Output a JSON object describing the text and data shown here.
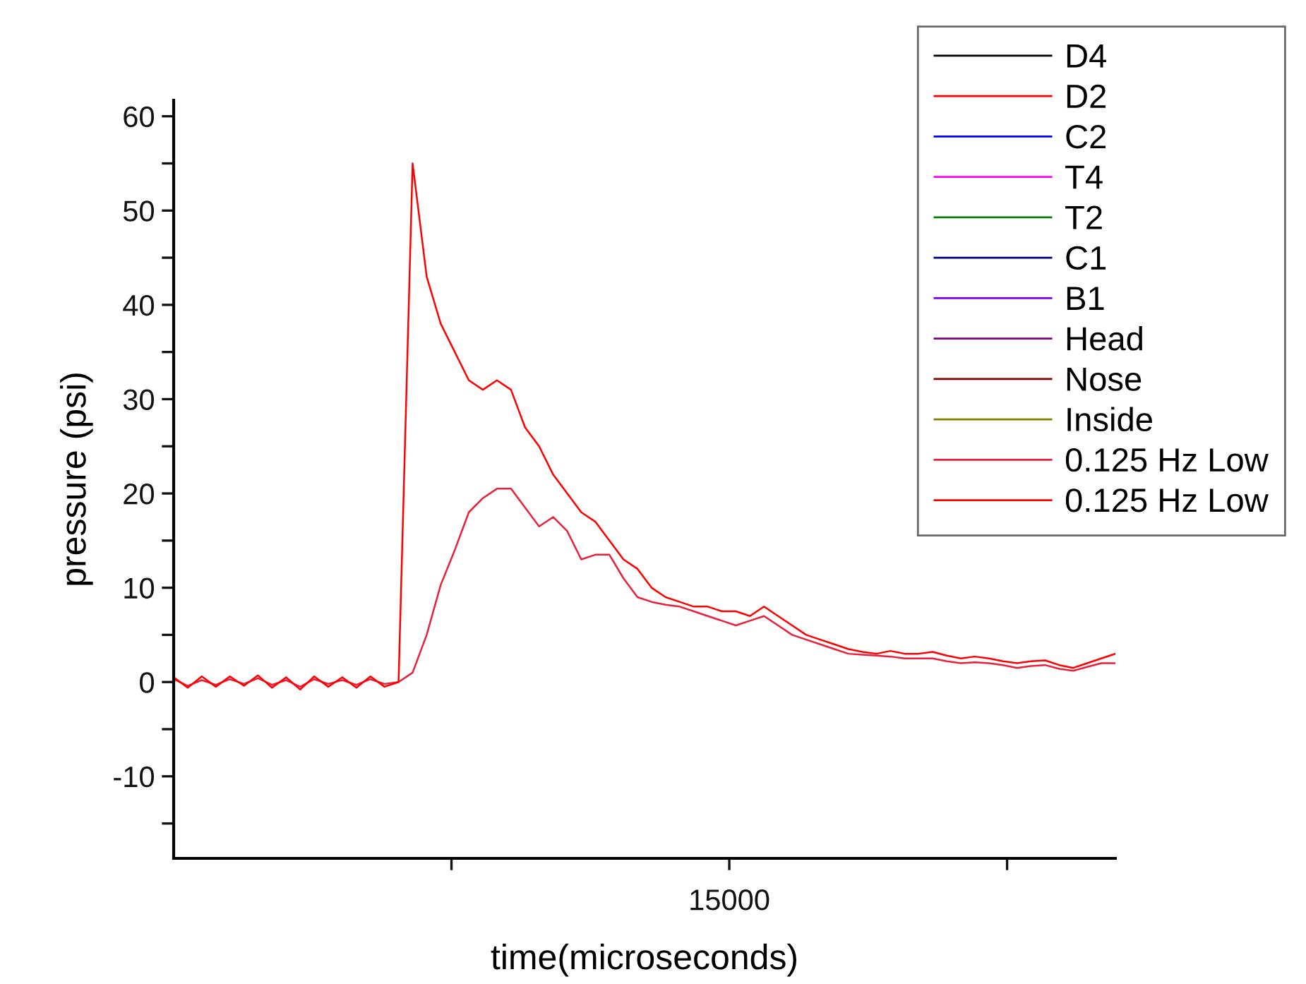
{
  "chart_data": {
    "type": "line",
    "xlabel": "time(microseconds)",
    "ylabel": "pressure (psi)",
    "annotations": [
      "15000"
    ],
    "categories": [
      null,
      null,
      null,
      null,
      null,
      null,
      null,
      null,
      null,
      null,
      null,
      null,
      null,
      null,
      null,
      null,
      null,
      null,
      null,
      null,
      null,
      null,
      null,
      null,
      null,
      null,
      null,
      null,
      null,
      null,
      null,
      null,
      null,
      null,
      null,
      null,
      null,
      null,
      null,
      null,
      null,
      null,
      null,
      null,
      null,
      null,
      null,
      null,
      null,
      null,
      null,
      null,
      null,
      null,
      null,
      null,
      null,
      null,
      null,
      null,
      null,
      null,
      null,
      null,
      null,
      null,
      null,
      null
    ],
    "ylim": [
      -18.7,
      61.7
    ],
    "yticks": [
      {
        "value": -15,
        "label": null
      },
      -10,
      {
        "value": -5,
        "label": null
      },
      0,
      {
        "value": 5,
        "label": null
      },
      10,
      {
        "value": 15,
        "label": null
      },
      20,
      {
        "value": 25,
        "label": null
      },
      30,
      {
        "value": 35,
        "label": null
      },
      40,
      {
        "value": 45,
        "label": null
      },
      50,
      {
        "value": 55,
        "label": null
      },
      60
    ],
    "legend": "top right",
    "line_style": "solid",
    "series": [
      {
        "name": "D4",
        "color": "#000000",
        "values": [
          null,
          null,
          null,
          null,
          null,
          null,
          null,
          null,
          null,
          null,
          null,
          null,
          null,
          null,
          null,
          null,
          null,
          null,
          null,
          null,
          null,
          null,
          null,
          null,
          null,
          null,
          null,
          null,
          null,
          null,
          null,
          null,
          null,
          null,
          null,
          null,
          null,
          null,
          null,
          null,
          null,
          null,
          null,
          null,
          null,
          null,
          null,
          null,
          null,
          null,
          null,
          null,
          null,
          null,
          null,
          null,
          null,
          null,
          null,
          null,
          null,
          null,
          null,
          null,
          null,
          null,
          null,
          null
        ]
      },
      {
        "name": "D2",
        "color": "#ff0000",
        "values": [
          null,
          null,
          null,
          null,
          null,
          null,
          null,
          null,
          null,
          null,
          null,
          null,
          null,
          null,
          null,
          null,
          null,
          null,
          null,
          null,
          null,
          null,
          null,
          null,
          null,
          null,
          null,
          null,
          null,
          null,
          null,
          null,
          null,
          null,
          null,
          null,
          null,
          null,
          null,
          null,
          null,
          null,
          null,
          null,
          null,
          null,
          null,
          null,
          null,
          null,
          null,
          null,
          null,
          null,
          null,
          null,
          null,
          null,
          null,
          null,
          null,
          null,
          null,
          null,
          null,
          null,
          null,
          null
        ]
      },
      {
        "name": "C2",
        "color": "#0000ff",
        "values": [
          null,
          null,
          null,
          null,
          null,
          null,
          null,
          null,
          null,
          null,
          null,
          null,
          null,
          null,
          null,
          null,
          null,
          null,
          null,
          null,
          null,
          null,
          null,
          null,
          null,
          null,
          null,
          null,
          null,
          null,
          null,
          null,
          null,
          null,
          null,
          null,
          null,
          null,
          null,
          null,
          null,
          null,
          null,
          null,
          null,
          null,
          null,
          null,
          null,
          null,
          null,
          null,
          null,
          null,
          null,
          null,
          null,
          null,
          null,
          null,
          null,
          null,
          null,
          null,
          null,
          null,
          null,
          null
        ]
      },
      {
        "name": "T4",
        "color": "#ff00ff",
        "values": [
          null,
          null,
          null,
          null,
          null,
          null,
          null,
          null,
          null,
          null,
          null,
          null,
          null,
          null,
          null,
          null,
          null,
          null,
          null,
          null,
          null,
          null,
          null,
          null,
          null,
          null,
          null,
          null,
          null,
          null,
          null,
          null,
          null,
          null,
          null,
          null,
          null,
          null,
          null,
          null,
          null,
          null,
          null,
          null,
          null,
          null,
          null,
          null,
          null,
          null,
          null,
          null,
          null,
          null,
          null,
          null,
          null,
          null,
          null,
          null,
          null,
          null,
          null,
          null,
          null,
          null,
          null,
          null
        ]
      },
      {
        "name": "T2",
        "color": "#008000",
        "values": [
          null,
          null,
          null,
          null,
          null,
          null,
          null,
          null,
          null,
          null,
          null,
          null,
          null,
          null,
          null,
          null,
          null,
          null,
          null,
          null,
          null,
          null,
          null,
          null,
          null,
          null,
          null,
          null,
          null,
          null,
          null,
          null,
          null,
          null,
          null,
          null,
          null,
          null,
          null,
          null,
          null,
          null,
          null,
          null,
          null,
          null,
          null,
          null,
          null,
          null,
          null,
          null,
          null,
          null,
          null,
          null,
          null,
          null,
          null,
          null,
          null,
          null,
          null,
          null,
          null,
          null,
          null,
          null
        ]
      },
      {
        "name": "C1",
        "color": "#000080",
        "values": [
          null,
          null,
          null,
          null,
          null,
          null,
          null,
          null,
          null,
          null,
          null,
          null,
          null,
          null,
          null,
          null,
          null,
          null,
          null,
          null,
          null,
          null,
          null,
          null,
          null,
          null,
          null,
          null,
          null,
          null,
          null,
          null,
          null,
          null,
          null,
          null,
          null,
          null,
          null,
          null,
          null,
          null,
          null,
          null,
          null,
          null,
          null,
          null,
          null,
          null,
          null,
          null,
          null,
          null,
          null,
          null,
          null,
          null,
          null,
          null,
          null,
          null,
          null,
          null,
          null,
          null,
          null,
          null
        ]
      },
      {
        "name": "B1",
        "color": "#8000ff",
        "values": [
          null,
          null,
          null,
          null,
          null,
          null,
          null,
          null,
          null,
          null,
          null,
          null,
          null,
          null,
          null,
          null,
          null,
          null,
          null,
          null,
          null,
          null,
          null,
          null,
          null,
          null,
          null,
          null,
          null,
          null,
          null,
          null,
          null,
          null,
          null,
          null,
          null,
          null,
          null,
          null,
          null,
          null,
          null,
          null,
          null,
          null,
          null,
          null,
          null,
          null,
          null,
          null,
          null,
          null,
          null,
          null,
          null,
          null,
          null,
          null,
          null,
          null,
          null,
          null,
          null,
          null,
          null,
          null
        ]
      },
      {
        "name": "Head",
        "color": "#800080",
        "values": [
          null,
          null,
          null,
          null,
          null,
          null,
          null,
          null,
          null,
          null,
          null,
          null,
          null,
          null,
          null,
          null,
          null,
          null,
          null,
          null,
          null,
          null,
          null,
          null,
          null,
          null,
          null,
          null,
          null,
          null,
          null,
          null,
          null,
          null,
          null,
          null,
          null,
          null,
          null,
          null,
          null,
          null,
          null,
          null,
          null,
          null,
          null,
          null,
          null,
          null,
          null,
          null,
          null,
          null,
          null,
          null,
          null,
          null,
          null,
          null,
          null,
          null,
          null,
          null,
          null,
          null,
          null,
          null
        ]
      },
      {
        "name": "Nose",
        "color": "#800000",
        "values": [
          null,
          null,
          null,
          null,
          null,
          null,
          null,
          null,
          null,
          null,
          null,
          null,
          null,
          null,
          null,
          null,
          null,
          null,
          null,
          null,
          null,
          null,
          null,
          null,
          null,
          null,
          null,
          null,
          null,
          null,
          null,
          null,
          null,
          null,
          null,
          null,
          null,
          null,
          null,
          null,
          null,
          null,
          null,
          null,
          null,
          null,
          null,
          null,
          null,
          null,
          null,
          null,
          null,
          null,
          null,
          null,
          null,
          null,
          null,
          null,
          null,
          null,
          null,
          null,
          null,
          null,
          null,
          null
        ]
      },
      {
        "name": "Inside",
        "color": "#808000",
        "values": [
          null,
          null,
          null,
          null,
          null,
          null,
          null,
          null,
          null,
          null,
          null,
          null,
          null,
          null,
          null,
          null,
          null,
          null,
          null,
          null,
          null,
          null,
          null,
          null,
          null,
          null,
          null,
          null,
          null,
          null,
          null,
          null,
          null,
          null,
          null,
          null,
          null,
          null,
          null,
          null,
          null,
          null,
          null,
          null,
          null,
          null,
          null,
          null,
          null,
          null,
          null,
          null,
          null,
          null,
          null,
          null,
          null,
          null,
          null,
          null,
          null,
          null,
          null,
          null,
          null,
          null,
          null,
          null
        ]
      },
      {
        "name": "0.125 Hz Low",
        "color": "#e8203a",
        "values": [
          0.3,
          -0.4,
          0.2,
          -0.3,
          0.3,
          -0.2,
          0.4,
          -0.3,
          0.2,
          -0.5,
          0.3,
          -0.2,
          0.2,
          -0.3,
          0.3,
          -0.2,
          0,
          1,
          5,
          10.3,
          14,
          18,
          19.5,
          20.5,
          20.5,
          18.5,
          16.5,
          17.5,
          16,
          13,
          13.5,
          13.5,
          11,
          9,
          8.5,
          8.2,
          8,
          7.5,
          7,
          6.5,
          6,
          6.5,
          7,
          6,
          5,
          4.5,
          4,
          3.5,
          3,
          2.9,
          2.8,
          2.7,
          2.5,
          2.5,
          2.5,
          2.2,
          2,
          2.1,
          2,
          1.8,
          1.5,
          1.7,
          1.8,
          1.4,
          1.2,
          1.6,
          2,
          2
        ]
      },
      {
        "name": "0.125 Hz Low",
        "color": "#ff0000",
        "values": [
          0.5,
          -0.6,
          0.6,
          -0.5,
          0.6,
          -0.4,
          0.7,
          -0.6,
          0.5,
          -0.8,
          0.6,
          -0.5,
          0.5,
          -0.6,
          0.6,
          -0.5,
          0,
          55,
          43,
          38,
          35,
          32,
          31,
          32,
          31,
          27,
          25,
          22,
          20,
          18,
          17,
          15,
          13,
          12,
          10,
          9,
          8.5,
          8,
          8,
          7.5,
          7.5,
          7,
          8,
          7,
          6,
          5,
          4.5,
          4,
          3.5,
          3.2,
          3,
          3.3,
          3,
          3,
          3.2,
          2.8,
          2.5,
          2.7,
          2.5,
          2.2,
          2,
          2.2,
          2.3,
          1.8,
          1.5,
          2,
          2.5,
          3
        ]
      }
    ]
  }
}
